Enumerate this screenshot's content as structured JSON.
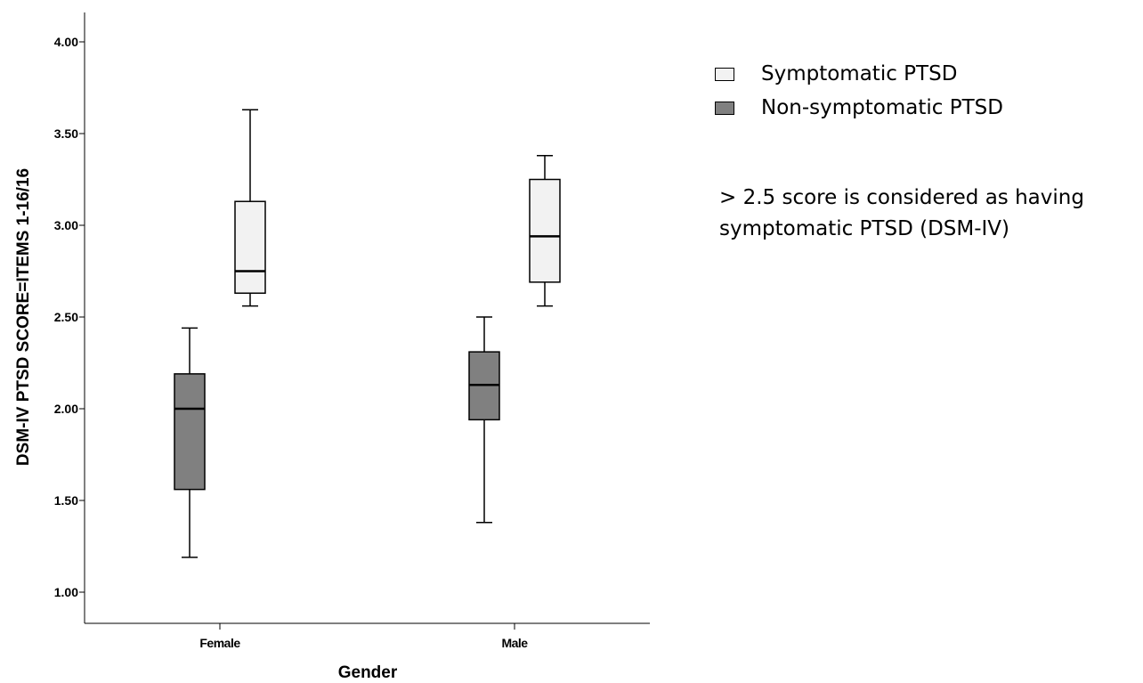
{
  "chart_data": {
    "type": "boxplot",
    "title": "",
    "xlabel": "Gender",
    "ylabel": "DSM-IV PTSD SCORE=ITEMS 1-16/16",
    "categories": [
      "Female",
      "Male"
    ],
    "ylim": [
      1.0,
      4.0
    ],
    "yticks": [
      "1.00",
      "1.50",
      "2.00",
      "2.50",
      "3.00",
      "3.50",
      "4.00"
    ],
    "legend_position": "right",
    "series": [
      {
        "name": "Non-symptomatic PTSD",
        "color": "#808080",
        "boxes": [
          {
            "category": "Female",
            "min": 1.19,
            "q1": 1.56,
            "median": 2.0,
            "q3": 2.19,
            "max": 2.44
          },
          {
            "category": "Male",
            "min": 1.38,
            "q1": 1.94,
            "median": 2.13,
            "q3": 2.31,
            "max": 2.5
          }
        ]
      },
      {
        "name": "Symptomatic PTSD",
        "color": "#f2f2f2",
        "boxes": [
          {
            "category": "Female",
            "min": 2.56,
            "q1": 2.63,
            "median": 2.75,
            "q3": 3.13,
            "max": 3.63
          },
          {
            "category": "Male",
            "min": 2.56,
            "q1": 2.69,
            "median": 2.94,
            "q3": 3.25,
            "max": 3.38
          }
        ]
      }
    ]
  },
  "legend": {
    "items": [
      {
        "label": "Symptomatic PTSD",
        "color": "#f2f2f2"
      },
      {
        "label": "Non-symptomatic PTSD",
        "color": "#808080"
      }
    ]
  },
  "annotation": {
    "line1": "> 2.5 score is considered as having",
    "line2": "symptomatic PTSD (DSM-IV)"
  }
}
